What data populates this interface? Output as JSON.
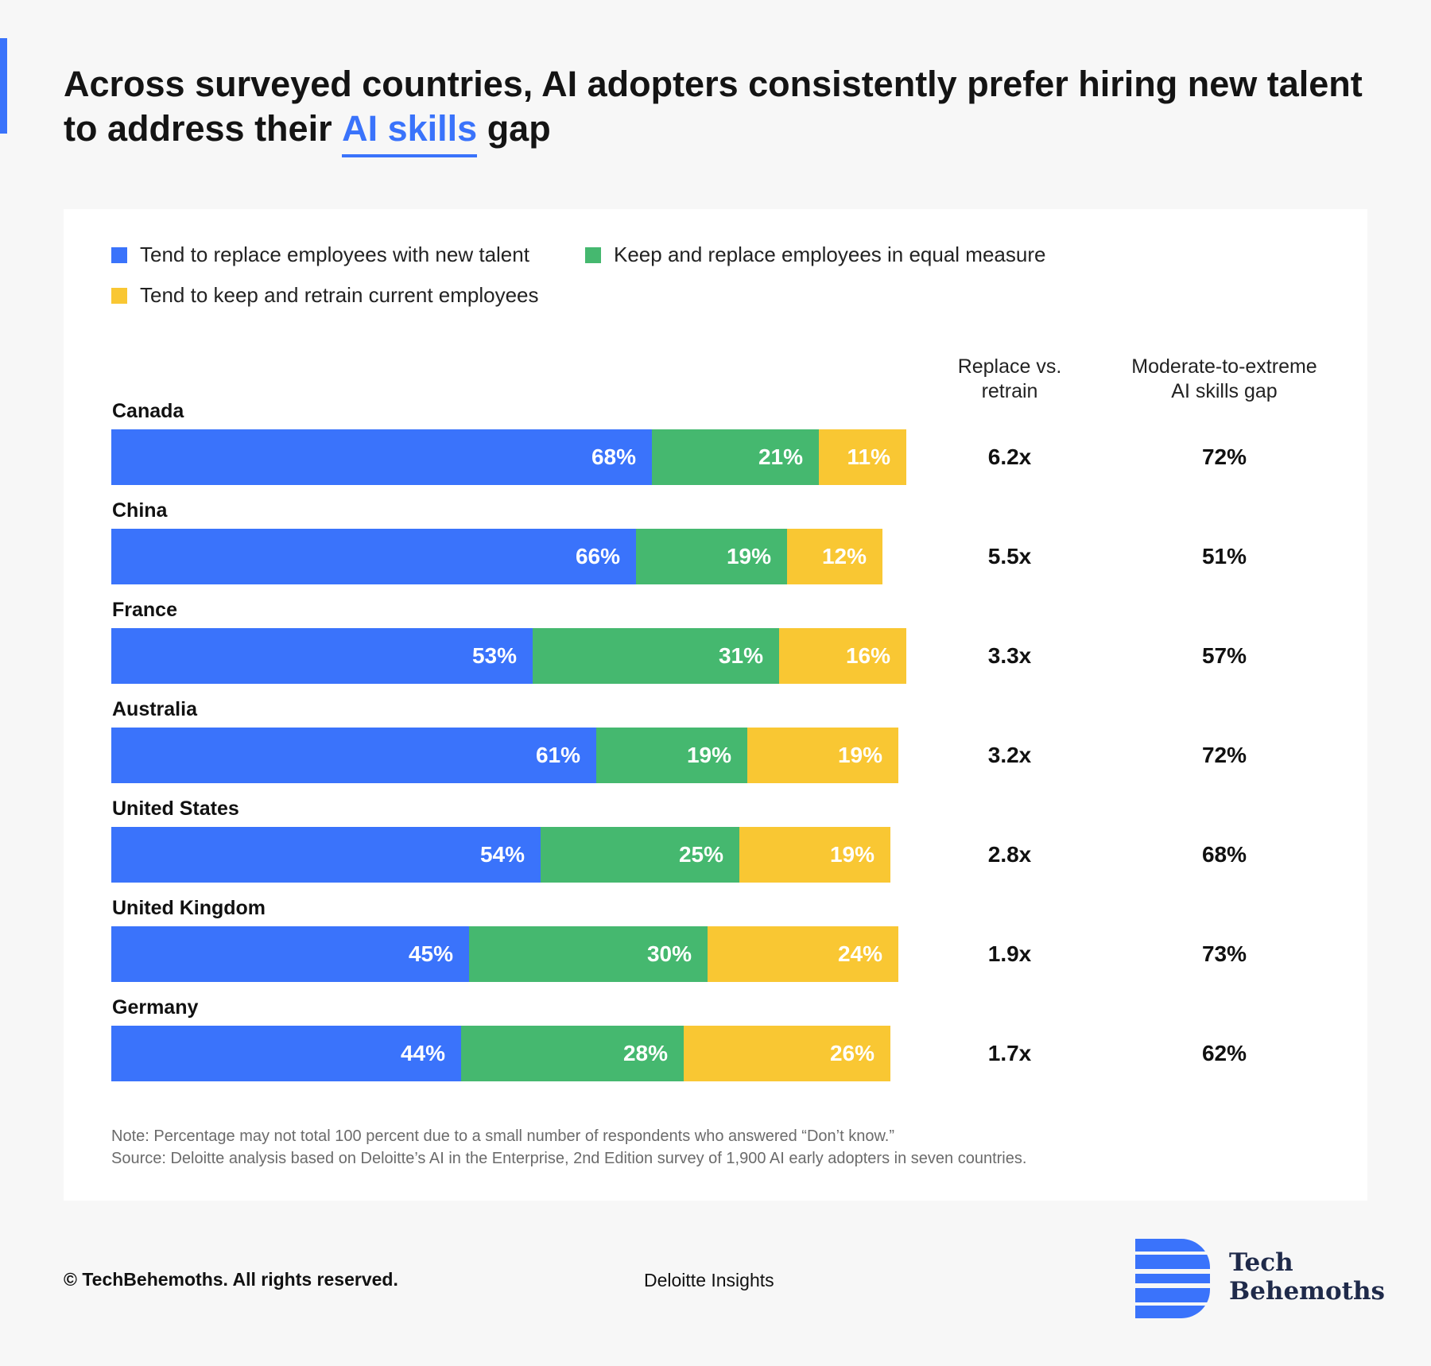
{
  "title": {
    "before": "Across surveyed countries, AI adopters consistently prefer hiring new talent to address their ",
    "highlight": "AI skills",
    "after": " gap"
  },
  "legend": [
    {
      "label": "Tend to replace employees with new talent",
      "color": "#3a73fb"
    },
    {
      "label": "Keep and replace employees in equal measure",
      "color": "#45b86f"
    },
    {
      "label": "Tend to keep and retrain current employees",
      "color": "#f9c733"
    }
  ],
  "columns": {
    "ratio_line1": "Replace vs.",
    "ratio_line2": "retrain",
    "gap_line1": "Moderate-to-extreme",
    "gap_line2": "AI skills gap"
  },
  "chart_data": {
    "type": "bar",
    "orientation": "horizontal",
    "stacked": true,
    "unit": "%",
    "categories": [
      "Canada",
      "China",
      "France",
      "Australia",
      "United States",
      "United Kingdom",
      "Germany"
    ],
    "series": [
      {
        "name": "Tend to replace employees with new talent",
        "color": "#3a73fb",
        "values": [
          68,
          66,
          53,
          61,
          54,
          45,
          44
        ]
      },
      {
        "name": "Keep and replace employees in equal measure",
        "color": "#45b86f",
        "values": [
          21,
          19,
          31,
          19,
          25,
          30,
          28
        ]
      },
      {
        "name": "Tend to keep and retrain current employees",
        "color": "#f9c733",
        "values": [
          11,
          12,
          16,
          19,
          19,
          24,
          26
        ]
      }
    ],
    "replace_vs_retrain": [
      "6.2x",
      "5.5x",
      "3.3x",
      "3.2x",
      "2.8x",
      "1.9x",
      "1.7x"
    ],
    "ai_skills_gap": [
      "72%",
      "51%",
      "57%",
      "72%",
      "68%",
      "73%",
      "62%"
    ]
  },
  "notes": {
    "note": "Note: Percentage may not total 100 percent due to a small number of respondents who answered “Don’t know.”",
    "source": "Source: Deloitte analysis based on Deloitte’s AI in the Enterprise, 2nd Edition survey of 1,900 AI early adopters in seven countries."
  },
  "footer": {
    "copyright": "© TechBehemoths. All rights reserved.",
    "source_brand": "Deloitte Insights",
    "logo_line1": "Tech",
    "logo_line2": "Behemoths",
    "logo_icon": "tech-behemoths-logo-icon",
    "logo_color": "#3a73fb"
  }
}
